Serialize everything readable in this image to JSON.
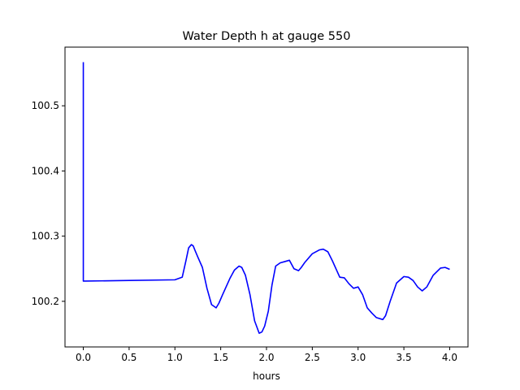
{
  "chart_data": {
    "type": "line",
    "title": "Water Depth h at gauge 550",
    "xlabel": "hours",
    "ylabel": "",
    "xlim": [
      -0.2,
      4.2
    ],
    "ylim": [
      100.13,
      100.59
    ],
    "xticks": [
      0.0,
      0.5,
      1.0,
      1.5,
      2.0,
      2.5,
      3.0,
      3.5,
      4.0
    ],
    "xtick_labels": [
      "0.0",
      "0.5",
      "1.0",
      "1.5",
      "2.0",
      "2.5",
      "3.0",
      "3.5",
      "4.0"
    ],
    "yticks": [
      100.2,
      100.3,
      100.4,
      100.5
    ],
    "ytick_labels": [
      "100.2",
      "100.3",
      "100.4",
      "100.5"
    ],
    "grid": false,
    "line_color": "#0000ff",
    "series": [
      {
        "x": [
          0.0,
          0.0,
          0.02,
          0.5,
          1.0,
          1.08,
          1.12,
          1.15,
          1.18,
          1.2,
          1.22,
          1.25,
          1.3,
          1.35,
          1.4,
          1.45,
          1.48,
          1.52,
          1.6,
          1.65,
          1.7,
          1.73,
          1.77,
          1.82,
          1.87,
          1.92,
          1.95,
          1.98,
          2.02,
          2.06,
          2.1,
          2.15,
          2.2,
          2.25,
          2.3,
          2.35,
          2.38,
          2.42,
          2.5,
          2.58,
          2.62,
          2.67,
          2.72,
          2.8,
          2.85,
          2.9,
          2.95,
          3.0,
          3.05,
          3.1,
          3.15,
          3.2,
          3.27,
          3.3,
          3.35,
          3.42,
          3.5,
          3.55,
          3.6,
          3.65,
          3.7,
          3.75,
          3.82,
          3.9,
          3.95,
          4.0
        ],
        "y": [
          100.567,
          100.231,
          100.231,
          100.232,
          100.233,
          100.237,
          100.262,
          100.282,
          100.287,
          100.285,
          100.278,
          100.268,
          100.252,
          100.22,
          100.195,
          100.19,
          100.197,
          100.21,
          100.235,
          100.248,
          100.254,
          100.252,
          100.24,
          100.21,
          100.17,
          100.151,
          100.153,
          100.162,
          100.185,
          100.225,
          100.254,
          100.259,
          100.261,
          100.263,
          100.25,
          100.247,
          100.252,
          100.26,
          100.273,
          100.279,
          100.28,
          100.276,
          100.262,
          100.237,
          100.236,
          100.227,
          100.22,
          100.222,
          100.21,
          100.19,
          100.182,
          100.175,
          100.172,
          100.178,
          100.2,
          100.228,
          100.238,
          100.237,
          100.232,
          100.222,
          100.216,
          100.222,
          100.24,
          100.251,
          100.252,
          100.249
        ]
      }
    ]
  }
}
